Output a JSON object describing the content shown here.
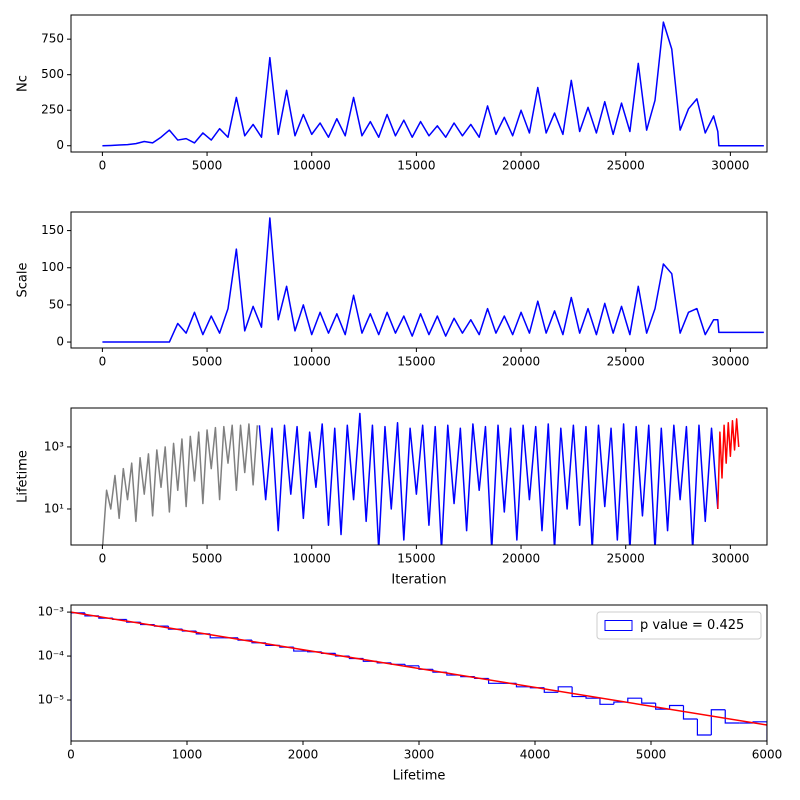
{
  "chart_data": [
    {
      "type": "line",
      "ylabel": "Nc",
      "xlim": [
        -1500,
        31750
      ],
      "ylim": [
        -44,
        920
      ],
      "xticks": [
        0,
        5000,
        10000,
        15000,
        20000,
        25000,
        30000
      ],
      "yticks": [
        0,
        250,
        500,
        750
      ],
      "series": [
        {
          "color": "blue",
          "x": [
            0,
            400,
            800,
            1200,
            1600,
            2000,
            2400,
            2800,
            3200,
            3600,
            4000,
            4400,
            4800,
            5200,
            5600,
            6000,
            6400,
            6800,
            7200,
            7600,
            8000,
            8400,
            8800,
            9200,
            9600,
            10000,
            10400,
            10800,
            11200,
            11600,
            12000,
            12400,
            12800,
            13200,
            13600,
            14000,
            14400,
            14800,
            15200,
            15600,
            16000,
            16400,
            16800,
            17200,
            17600,
            18000,
            18400,
            18800,
            19200,
            19600,
            20000,
            20400,
            20800,
            21200,
            21600,
            22000,
            22400,
            22800,
            23200,
            23600,
            24000,
            24400,
            24800,
            25200,
            25600,
            26000,
            26400,
            26800,
            27200,
            27600,
            28000,
            28400,
            28800,
            29200,
            29400,
            29450,
            31600
          ],
          "values": [
            0,
            2,
            5,
            8,
            15,
            30,
            20,
            60,
            110,
            40,
            50,
            20,
            90,
            40,
            120,
            60,
            340,
            70,
            150,
            60,
            620,
            80,
            390,
            70,
            220,
            80,
            160,
            60,
            190,
            70,
            340,
            70,
            170,
            60,
            220,
            70,
            180,
            60,
            170,
            70,
            140,
            60,
            160,
            70,
            150,
            60,
            280,
            80,
            200,
            70,
            250,
            90,
            410,
            90,
            230,
            80,
            460,
            100,
            270,
            90,
            310,
            80,
            300,
            100,
            580,
            110,
            320,
            870,
            680,
            110,
            260,
            330,
            90,
            210,
            100,
            0,
            0
          ]
        }
      ]
    },
    {
      "type": "line",
      "ylabel": "Scale",
      "xlim": [
        -1500,
        31750
      ],
      "ylim": [
        -8,
        175
      ],
      "xticks": [
        0,
        5000,
        10000,
        15000,
        20000,
        25000,
        30000
      ],
      "yticks": [
        0,
        50,
        100,
        150
      ],
      "series": [
        {
          "color": "blue",
          "x": [
            0,
            400,
            800,
            1200,
            1600,
            2000,
            2400,
            2800,
            3200,
            3600,
            4000,
            4400,
            4800,
            5200,
            5600,
            6000,
            6400,
            6800,
            7200,
            7600,
            8000,
            8400,
            8800,
            9200,
            9600,
            10000,
            10400,
            10800,
            11200,
            11600,
            12000,
            12400,
            12800,
            13200,
            13600,
            14000,
            14400,
            14800,
            15200,
            15600,
            16000,
            16400,
            16800,
            17200,
            17600,
            18000,
            18400,
            18800,
            19200,
            19600,
            20000,
            20400,
            20800,
            21200,
            21600,
            22000,
            22400,
            22800,
            23200,
            23600,
            24000,
            24400,
            24800,
            25200,
            25600,
            26000,
            26400,
            26800,
            27200,
            27600,
            28000,
            28400,
            28800,
            29200,
            29400,
            29450,
            31600
          ],
          "values": [
            0,
            0,
            0,
            0,
            0,
            0,
            0,
            0,
            0,
            25,
            12,
            40,
            10,
            35,
            12,
            45,
            125,
            15,
            48,
            20,
            167,
            30,
            75,
            15,
            50,
            10,
            40,
            12,
            38,
            10,
            63,
            12,
            38,
            10,
            40,
            12,
            35,
            8,
            38,
            10,
            35,
            8,
            32,
            12,
            30,
            10,
            45,
            12,
            35,
            10,
            40,
            12,
            55,
            12,
            42,
            10,
            60,
            12,
            45,
            10,
            52,
            12,
            48,
            10,
            75,
            12,
            45,
            105,
            92,
            12,
            40,
            45,
            10,
            30,
            30,
            13,
            13
          ]
        }
      ]
    },
    {
      "type": "line",
      "ylabel": "Lifetime",
      "xlabel": "Iteration",
      "yscale": "log",
      "xlim": [
        -1500,
        31750
      ],
      "ylim": [
        0.69,
        18000
      ],
      "xticks": [
        0,
        5000,
        10000,
        15000,
        20000,
        25000,
        30000
      ],
      "yticks": [
        {
          "value": 10,
          "label": "10¹"
        },
        {
          "value": 1000,
          "label": "10³"
        }
      ],
      "series": [
        {
          "color": "gray",
          "x": [
            0,
            200,
            400,
            600,
            800,
            1000,
            1200,
            1400,
            1600,
            1800,
            2000,
            2200,
            2400,
            2600,
            2800,
            3000,
            3200,
            3400,
            3600,
            3800,
            4000,
            4200,
            4400,
            4600,
            4800,
            5000,
            5200,
            5400,
            5600,
            5800,
            6000,
            6200,
            6400,
            6600,
            6800,
            7000,
            7200,
            7400
          ],
          "values": [
            0.5,
            40,
            10,
            120,
            5,
            200,
            20,
            300,
            4,
            450,
            30,
            600,
            6,
            800,
            50,
            1000,
            8,
            1300,
            40,
            1800,
            12,
            2200,
            80,
            3000,
            15,
            3500,
            200,
            4200,
            20,
            4500,
            300,
            5000,
            40,
            5000,
            150,
            5500,
            60,
            5000
          ]
        },
        {
          "color": "blue",
          "x": [
            7500,
            7800,
            8100,
            8400,
            8700,
            9000,
            9300,
            9600,
            9900,
            10200,
            10500,
            10800,
            11100,
            11400,
            11700,
            12000,
            12300,
            12600,
            12900,
            13200,
            13500,
            13800,
            14100,
            14400,
            14700,
            15000,
            15300,
            15600,
            15900,
            16200,
            16500,
            16800,
            17100,
            17400,
            17700,
            18000,
            18300,
            18600,
            18900,
            19200,
            19500,
            19800,
            20100,
            20400,
            20700,
            21000,
            21300,
            21600,
            21900,
            22200,
            22500,
            22800,
            23100,
            23400,
            23700,
            24000,
            24300,
            24600,
            24900,
            25200,
            25500,
            25800,
            26100,
            26400,
            26700,
            27000,
            27300,
            27600,
            27900,
            28200,
            28500,
            28800,
            29100,
            29400
          ],
          "values": [
            5000,
            20,
            4000,
            2,
            5000,
            30,
            4500,
            5,
            3000,
            50,
            5500,
            3,
            4000,
            1.5,
            5000,
            20,
            12000,
            4,
            5000,
            0.5,
            4500,
            10,
            6000,
            1,
            4000,
            30,
            5000,
            3,
            4500,
            0.5,
            5000,
            15,
            4000,
            2,
            5500,
            40,
            4500,
            0.5,
            5000,
            8,
            4000,
            1,
            5000,
            20,
            4500,
            2,
            5500,
            0.5,
            4000,
            10,
            5000,
            3,
            4500,
            0.5,
            5000,
            12,
            4000,
            1,
            5500,
            0.5,
            4500,
            6,
            5000,
            0.5,
            4000,
            2,
            5000,
            20,
            4500,
            0.5,
            5000,
            4,
            4000,
            10
          ]
        },
        {
          "color": "red",
          "x": [
            29400,
            29500,
            29600,
            29700,
            29800,
            29900,
            30000,
            30100,
            30200,
            30300,
            30400
          ],
          "values": [
            10,
            3000,
            100,
            5000,
            300,
            6000,
            500,
            7000,
            800,
            8000,
            1000
          ]
        }
      ]
    },
    {
      "type": "histogram",
      "xlabel": "Lifetime",
      "yscale": "log",
      "xlim": [
        0,
        6000
      ],
      "ylim": [
        1.17e-06,
        0.00145
      ],
      "xticks": [
        0,
        1000,
        2000,
        3000,
        4000,
        5000,
        6000
      ],
      "yticks": [
        {
          "value": 1e-05,
          "label": "10⁻⁵"
        },
        {
          "value": 0.0001,
          "label": "10⁻⁴"
        },
        {
          "value": 0.001,
          "label": "10⁻³"
        }
      ],
      "legend": "upper right",
      "bins": [
        0,
        120,
        240,
        360,
        480,
        600,
        720,
        840,
        960,
        1080,
        1200,
        1320,
        1440,
        1560,
        1680,
        1800,
        1920,
        2040,
        2160,
        2280,
        2400,
        2520,
        2640,
        2760,
        2880,
        3000,
        3120,
        3240,
        3360,
        3480,
        3600,
        3720,
        3840,
        3960,
        4080,
        4200,
        4320,
        4440,
        4560,
        4680,
        4800,
        4920,
        5040,
        5160,
        5280,
        5400,
        5520,
        5640,
        5760,
        5880,
        6000
      ],
      "series": [
        {
          "name": "p value = 0.425",
          "color": "blue",
          "values": [
            0.00096,
            0.00082,
            0.00073,
            0.00068,
            0.00059,
            0.00052,
            0.00048,
            0.00041,
            0.00037,
            0.00032,
            0.00026,
            0.00026,
            0.00023,
            0.0002,
            0.000175,
            0.00016,
            0.00013,
            0.000125,
            0.000115,
            0.0001,
            8.8e-05,
            7.6e-05,
            7e-05,
            6.5e-05,
            6e-05,
            5e-05,
            4.3e-05,
            3.7e-05,
            3.4e-05,
            3.1e-05,
            2.4e-05,
            2.4e-05,
            2e-05,
            1.9e-05,
            1.5e-05,
            2e-05,
            1.2e-05,
            1.1e-05,
            8e-06,
            9e-06,
            1.1e-05,
            8.5e-06,
            6.2e-06,
            7.5e-06,
            3.7e-06,
            1.6e-06,
            6e-06,
            3e-06,
            3e-06,
            3.2e-06
          ]
        }
      ],
      "fit": {
        "color": "red",
        "x": [
          0,
          6000
        ],
        "values": [
          0.001,
          2.7e-06
        ]
      }
    }
  ]
}
